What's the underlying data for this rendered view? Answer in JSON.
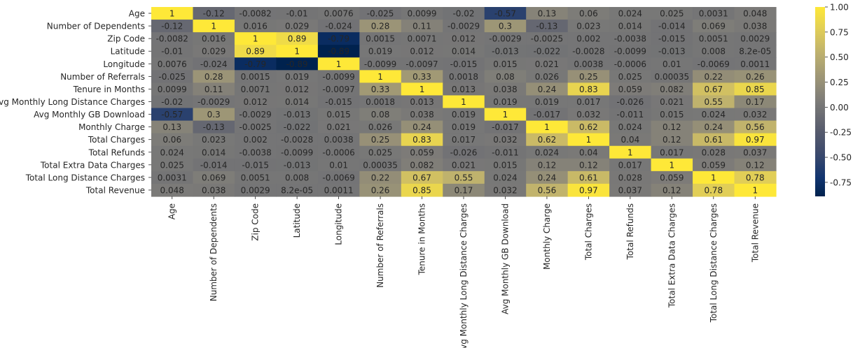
{
  "chart_data": {
    "type": "heatmap",
    "labels": [
      "Age",
      "Number of Dependents",
      "Zip Code",
      "Latitude",
      "Longitude",
      "Number of Referrals",
      "Tenure in Months",
      "Avg Monthly Long Distance Charges",
      "Avg Monthly GB Download",
      "Monthly Charge",
      "Total Charges",
      "Total Refunds",
      "Total Extra Data Charges",
      "Total Long Distance Charges",
      "Total Revenue"
    ],
    "cells": [
      [
        "1",
        "-0.12",
        "-0.0082",
        "-0.01",
        "0.0076",
        "-0.025",
        "0.0099",
        "-0.02",
        "-0.57",
        "0.13",
        "0.06",
        "0.024",
        "0.025",
        "0.0031",
        "0.048"
      ],
      [
        "-0.12",
        "1",
        "0.016",
        "0.029",
        "-0.024",
        "0.28",
        "0.11",
        "-0.0029",
        "0.3",
        "-0.13",
        "0.023",
        "0.014",
        "-0.014",
        "0.069",
        "0.038"
      ],
      [
        "-0.0082",
        "0.016",
        "1",
        "0.89",
        "-0.79",
        "0.0015",
        "0.0071",
        "0.012",
        "-0.0029",
        "-0.0025",
        "0.002",
        "-0.0038",
        "-0.015",
        "0.0051",
        "0.0029"
      ],
      [
        "-0.01",
        "0.029",
        "0.89",
        "1",
        "-0.89",
        "0.019",
        "0.012",
        "0.014",
        "-0.013",
        "-0.022",
        "-0.0028",
        "-0.0099",
        "-0.013",
        "0.008",
        "8.2e-05"
      ],
      [
        "0.0076",
        "-0.024",
        "-0.79",
        "-0.89",
        "1",
        "-0.0099",
        "-0.0097",
        "-0.015",
        "0.015",
        "0.021",
        "0.0038",
        "-0.0006",
        "0.01",
        "-0.0069",
        "0.0011"
      ],
      [
        "-0.025",
        "0.28",
        "0.0015",
        "0.019",
        "-0.0099",
        "1",
        "0.33",
        "0.0018",
        "0.08",
        "0.026",
        "0.25",
        "0.025",
        "0.00035",
        "0.22",
        "0.26"
      ],
      [
        "0.0099",
        "0.11",
        "0.0071",
        "0.012",
        "-0.0097",
        "0.33",
        "1",
        "0.013",
        "0.038",
        "0.24",
        "0.83",
        "0.059",
        "0.082",
        "0.67",
        "0.85"
      ],
      [
        "-0.02",
        "-0.0029",
        "0.012",
        "0.014",
        "-0.015",
        "0.0018",
        "0.013",
        "1",
        "0.019",
        "0.019",
        "0.017",
        "-0.026",
        "0.021",
        "0.55",
        "0.17"
      ],
      [
        "-0.57",
        "0.3",
        "-0.0029",
        "-0.013",
        "0.015",
        "0.08",
        "0.038",
        "0.019",
        "1",
        "-0.017",
        "0.032",
        "-0.011",
        "0.015",
        "0.024",
        "0.032"
      ],
      [
        "0.13",
        "-0.13",
        "-0.0025",
        "-0.022",
        "0.021",
        "0.026",
        "0.24",
        "0.019",
        "-0.017",
        "1",
        "0.62",
        "0.024",
        "0.12",
        "0.24",
        "0.56"
      ],
      [
        "0.06",
        "0.023",
        "0.002",
        "-0.0028",
        "0.0038",
        "0.25",
        "0.83",
        "0.017",
        "0.032",
        "0.62",
        "1",
        "0.04",
        "0.12",
        "0.61",
        "0.97"
      ],
      [
        "0.024",
        "0.014",
        "-0.0038",
        "-0.0099",
        "-0.0006",
        "0.025",
        "0.059",
        "-0.026",
        "-0.011",
        "0.024",
        "0.04",
        "1",
        "0.017",
        "0.028",
        "0.037"
      ],
      [
        "0.025",
        "-0.014",
        "-0.015",
        "-0.013",
        "0.01",
        "0.00035",
        "0.082",
        "0.021",
        "0.015",
        "0.12",
        "0.12",
        "0.017",
        "1",
        "0.059",
        "0.12"
      ],
      [
        "0.0031",
        "0.069",
        "0.0051",
        "0.008",
        "-0.0069",
        "0.22",
        "0.67",
        "0.55",
        "0.024",
        "0.24",
        "0.61",
        "0.028",
        "0.059",
        "1",
        "0.78"
      ],
      [
        "0.048",
        "0.038",
        "0.0029",
        "8.2e-05",
        "0.0011",
        "0.26",
        "0.85",
        "0.17",
        "0.032",
        "0.56",
        "0.97",
        "0.037",
        "0.12",
        "0.78",
        "1"
      ]
    ],
    "colormap": "cividis",
    "vmin": -0.89,
    "vmax": 1.0,
    "colorbar_ticks": [
      "1.00",
      "0.75",
      "0.50",
      "0.25",
      "0.00",
      "-0.25",
      "-0.50",
      "-0.75"
    ],
    "colorbar_values": [
      1.0,
      0.75,
      0.5,
      0.25,
      0.0,
      -0.25,
      -0.5,
      -0.75
    ],
    "colorbar_position": "right",
    "grid": false
  }
}
